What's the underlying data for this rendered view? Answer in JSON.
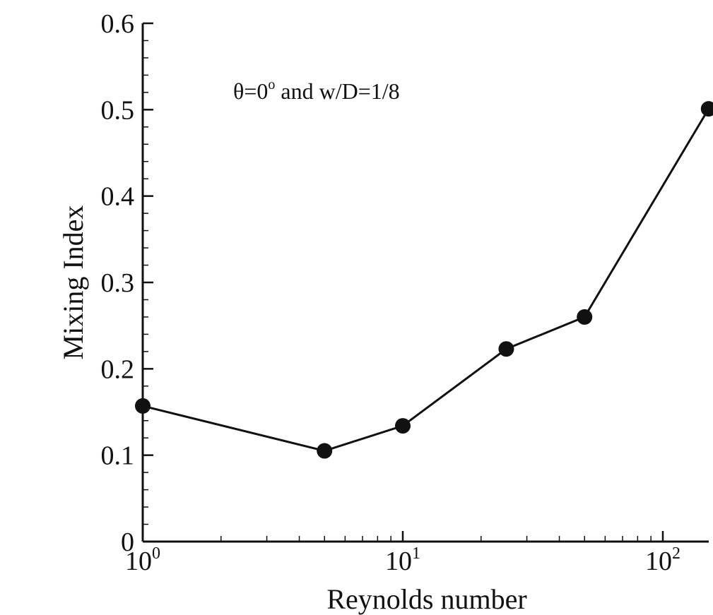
{
  "chart_data": {
    "type": "line",
    "title": "",
    "annotation": "θ=0° and w/D=1/8",
    "annotation_parts": {
      "prefix": "θ=0",
      "superscript": "o",
      "suffix": " and w/D=1/8"
    },
    "xlabel": "Reynolds number",
    "ylabel": "Mixing Index",
    "x_scale": "log",
    "xlim": [
      1,
      150
    ],
    "ylim": [
      0,
      0.6
    ],
    "x_ticks": [
      {
        "base": "10",
        "exp": "0",
        "value": 1
      },
      {
        "base": "10",
        "exp": "1",
        "value": 10
      },
      {
        "base": "10",
        "exp": "2",
        "value": 100
      }
    ],
    "y_ticks": [
      "0",
      "0.1",
      "0.2",
      "0.3",
      "0.4",
      "0.5",
      "0.6"
    ],
    "grid": false,
    "series": [
      {
        "x": [
          1,
          5,
          10,
          25,
          50,
          150
        ],
        "y": [
          0.157,
          0.105,
          0.134,
          0.223,
          0.26,
          0.501
        ]
      }
    ],
    "colors": {
      "line": "#111111",
      "marker": "#111111"
    }
  }
}
